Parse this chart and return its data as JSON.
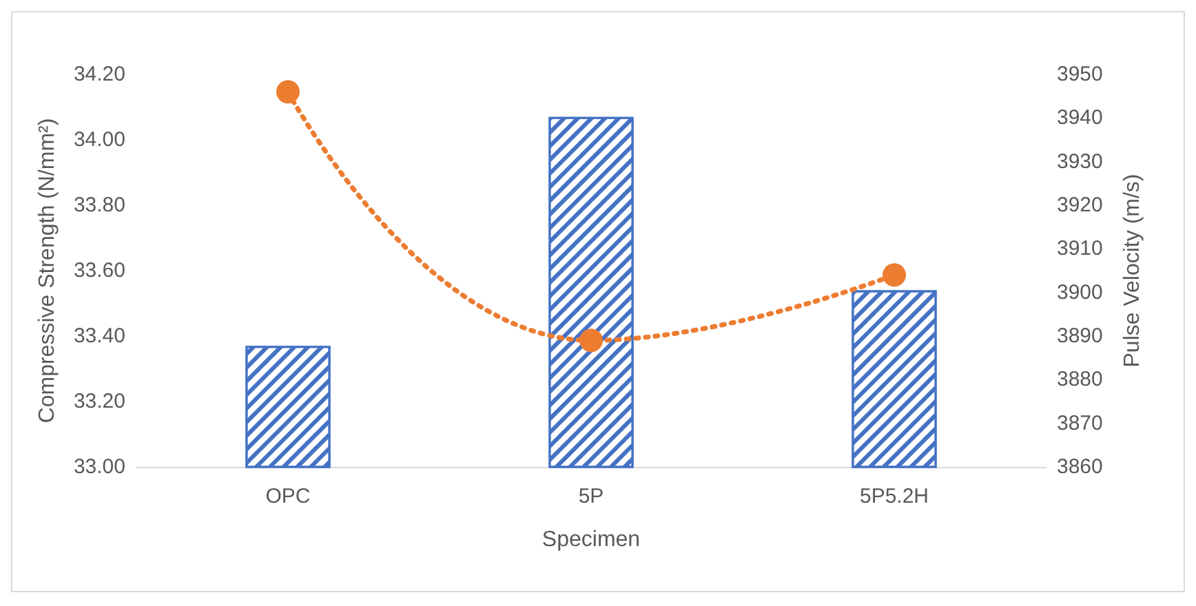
{
  "chart_data": {
    "type": "bar",
    "xlabel": "Specimen",
    "ylabel": "Compressive Strength (N/mm²)",
    "y2label": "Pulse Velocity (m/s)",
    "categories": [
      "OPC",
      "5P",
      "5P5.2H"
    ],
    "series": [
      {
        "color": "#4472c4",
        "values": [
          33.37,
          34.07,
          33.54
        ]
      },
      {
        "type": "line",
        "axis": "y2",
        "color": "#ed7d31",
        "values": [
          3946,
          3889,
          3904
        ],
        "marker": "circle",
        "line_style": "dotted"
      }
    ],
    "ylim": [
      33,
      34.2
    ],
    "yticks": [
      {
        "value": 33,
        "label": "33.00"
      },
      {
        "value": 33.2,
        "label": "33.20"
      },
      {
        "value": 33.4,
        "label": "33.40"
      },
      {
        "value": 33.6,
        "label": "33.60"
      },
      {
        "value": 33.8,
        "label": "33.80"
      },
      {
        "value": 34,
        "label": "34.00"
      },
      {
        "value": 34.2,
        "label": "34.20"
      }
    ],
    "y2lim": [
      3860,
      3950
    ],
    "y2ticks": [
      3860,
      3870,
      3880,
      3890,
      3900,
      3910,
      3920,
      3930,
      3940,
      3950
    ],
    "grid": false
  }
}
